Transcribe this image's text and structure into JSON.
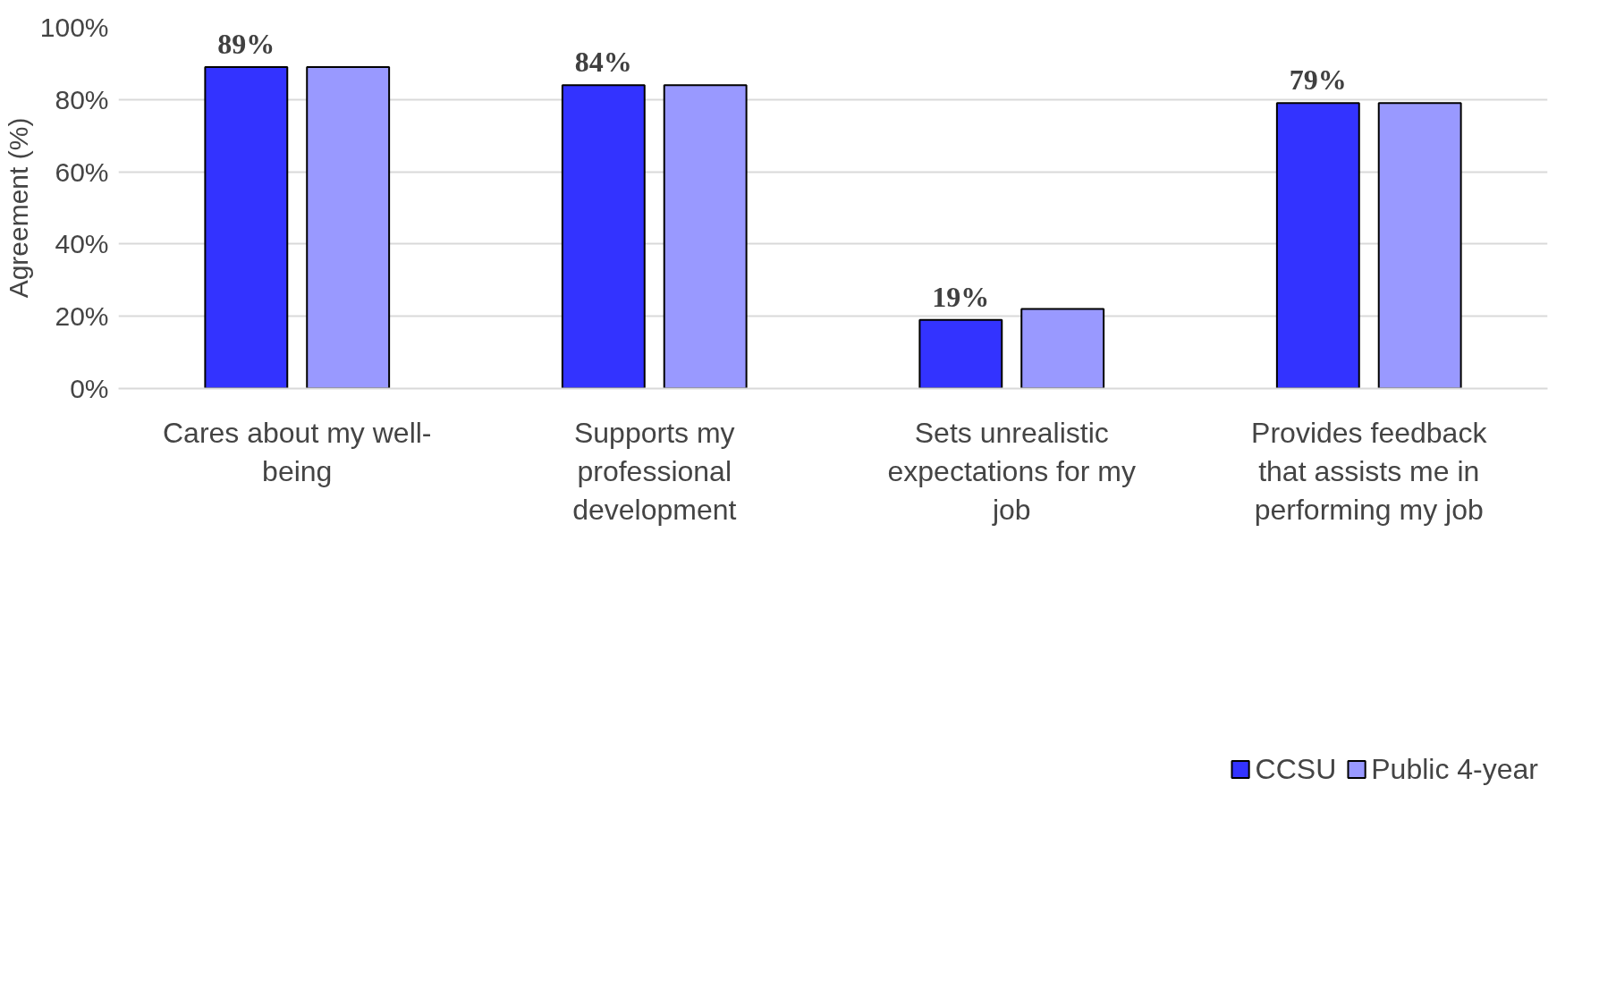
{
  "chart_data": {
    "type": "bar",
    "ylabel": "Agreement (%)",
    "categories": [
      "Cares about my well-being",
      "Supports my professional development",
      "Sets unrealistic expectations for my job",
      "Provides feedback that assists me in performing my job"
    ],
    "series": [
      {
        "name": "CCSU",
        "color": "#3333ff",
        "values": [
          89,
          84,
          19,
          79
        ],
        "value_labels": [
          "89%",
          "84%",
          "19%",
          "79%"
        ]
      },
      {
        "name": "Public 4-year",
        "color": "#9999ff",
        "values": [
          89,
          84,
          22,
          79
        ]
      }
    ],
    "ylim": [
      0,
      100
    ],
    "yticks": [
      {
        "value": 0,
        "label": "0%"
      },
      {
        "value": 20,
        "label": "20%"
      },
      {
        "value": 40,
        "label": "40%"
      },
      {
        "value": 60,
        "label": "60%"
      },
      {
        "value": 80,
        "label": "80%"
      },
      {
        "value": 100,
        "label": "100%"
      }
    ],
    "grid": "y",
    "legend": "bottom"
  }
}
